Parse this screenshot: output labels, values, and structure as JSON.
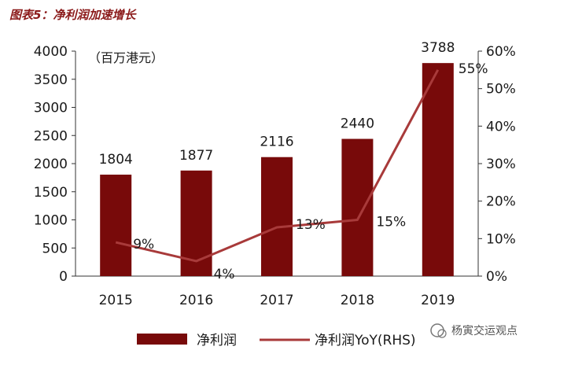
{
  "figure_title": "图表5：净利润加速增长",
  "unit_note": "（百万港元）",
  "watermark": "杨寅交运观点",
  "colors": {
    "bar": "#780a0a",
    "line": "#a83a3a",
    "title": "#8b1a1a"
  },
  "chart_data": {
    "type": "bar",
    "categories": [
      "2015",
      "2016",
      "2017",
      "2018",
      "2019"
    ],
    "series": [
      {
        "name": "净利润",
        "type": "bar",
        "axis": "left",
        "values": [
          1804,
          1877,
          2116,
          2440,
          3788
        ]
      },
      {
        "name": "净利润YoY(RHS)",
        "type": "line",
        "axis": "right",
        "values": [
          9,
          4,
          13,
          15,
          55
        ]
      }
    ],
    "bar_labels": [
      "1804",
      "1877",
      "2116",
      "2440",
      "3788"
    ],
    "line_labels": [
      "9%",
      "4%",
      "13%",
      "15%",
      "55%"
    ],
    "y_left": {
      "min": 0,
      "max": 4000,
      "ticks": [
        "0",
        "500",
        "1000",
        "1500",
        "2000",
        "2500",
        "3000",
        "3500",
        "4000"
      ]
    },
    "y_right": {
      "min": 0,
      "max": 60,
      "ticks": [
        "0%",
        "10%",
        "20%",
        "30%",
        "40%",
        "50%",
        "60%"
      ]
    },
    "legend_position": "bottom",
    "grid": false
  }
}
